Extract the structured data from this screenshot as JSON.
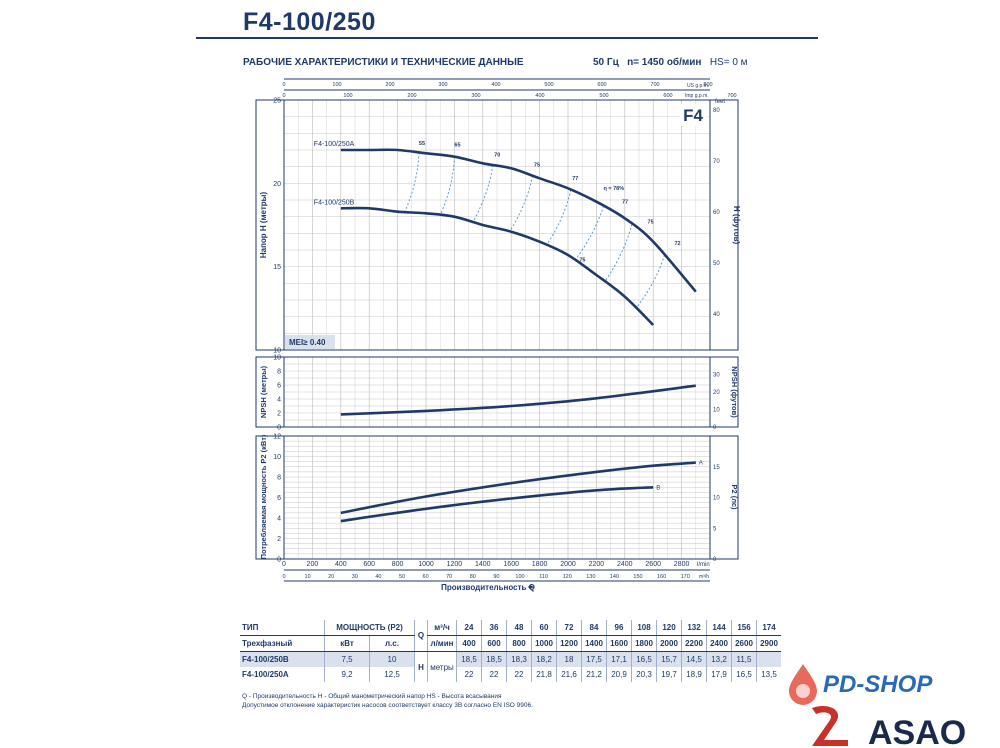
{
  "header": {
    "title": "F4-100/250",
    "subtitle": "РАБОЧИЕ ХАРАКТЕРИСТИКИ И ТЕХНИЧЕСКИЕ ДАННЫЕ",
    "freq": "50 Гц",
    "speed": "n= 1450 об/мин",
    "hs": "HS= 0 м"
  },
  "colors": {
    "curve": "#1f3a68",
    "eff": "#4a90c8",
    "grid": "#b9b9b9"
  },
  "chart_data": [
    {
      "type": "line",
      "badge": "F4",
      "mei": "MEI≥ 0.40",
      "ylabel": "Напор H (метры)",
      "y2label": "H (футов)",
      "y2unit": "feet",
      "ylim": [
        10,
        25
      ],
      "yticks": [
        "10",
        "15",
        "20",
        "25"
      ],
      "y2ticks": [
        "40",
        "50",
        "60",
        "70",
        "80"
      ],
      "top_axes": [
        {
          "unit": "US g.p.m.",
          "ticks": [
            "0",
            "100",
            "200",
            "300",
            "400",
            "500",
            "600",
            "700",
            "800"
          ]
        },
        {
          "unit": "Imp g.p.m.",
          "ticks": [
            "0",
            "100",
            "200",
            "300",
            "400",
            "500",
            "600",
            "700"
          ]
        }
      ],
      "series": [
        {
          "name": "F4-100/250A",
          "x": [
            400,
            600,
            800,
            1000,
            1200,
            1400,
            1600,
            1800,
            2000,
            2200,
            2400,
            2600,
            2900
          ],
          "y": [
            22,
            22,
            22,
            21.8,
            21.6,
            21.2,
            20.9,
            20.3,
            19.7,
            18.9,
            17.9,
            16.5,
            13.5
          ]
        },
        {
          "name": "F4-100/250B",
          "x": [
            400,
            600,
            800,
            1000,
            1200,
            1400,
            1600,
            1800,
            2000,
            2200,
            2400,
            2600
          ],
          "y": [
            18.5,
            18.5,
            18.3,
            18.2,
            18,
            17.5,
            17.1,
            16.5,
            15.7,
            14.5,
            13.2,
            11.5
          ]
        }
      ],
      "efficiency_labels": [
        "55",
        "65",
        "70",
        "75",
        "77",
        "η = 78%",
        "77",
        "75",
        "72",
        "75"
      ]
    },
    {
      "type": "line",
      "ylabel": "NPSH (метры)",
      "y2label": "NPSH (футов)",
      "ylim": [
        0,
        10
      ],
      "yticks": [
        "0",
        "2",
        "4",
        "6",
        "8",
        "10"
      ],
      "y2ticks": [
        "0",
        "10",
        "20",
        "30"
      ],
      "series": [
        {
          "x": [
            400,
            1000,
            1600,
            2200,
            2900
          ],
          "y": [
            1.8,
            2.3,
            3.0,
            4.1,
            5.9
          ]
        }
      ]
    },
    {
      "type": "line",
      "ylabel": "Потребляемая мощность P2 (кВт)",
      "y2label": "P2 (лс)",
      "ylim": [
        0,
        12
      ],
      "yticks": [
        "0",
        "2",
        "4",
        "6",
        "8",
        "10",
        "12"
      ],
      "y2ticks": [
        "0",
        "5",
        "10",
        "15"
      ],
      "xlabel": "Производительность Q",
      "xunit": "l/min",
      "x2unit": "m³/h",
      "xlim": [
        0,
        3000
      ],
      "xticks": [
        "0",
        "200",
        "400",
        "600",
        "800",
        "1000",
        "1200",
        "1400",
        "1600",
        "1800",
        "2000",
        "2200",
        "2400",
        "2600",
        "2800"
      ],
      "x2ticks": [
        "0",
        "10",
        "20",
        "30",
        "40",
        "50",
        "60",
        "70",
        "80",
        "90",
        "100",
        "110",
        "120",
        "130",
        "140",
        "150",
        "160",
        "170"
      ],
      "series": [
        {
          "name": "A",
          "x": [
            400,
            1000,
            1600,
            2200,
            2600,
            2900
          ],
          "y": [
            4.5,
            6.1,
            7.4,
            8.5,
            9.1,
            9.4
          ]
        },
        {
          "name": "B",
          "x": [
            400,
            1000,
            1600,
            2200,
            2600
          ],
          "y": [
            3.7,
            4.9,
            5.9,
            6.7,
            7.0
          ]
        }
      ]
    }
  ],
  "table": {
    "col_type": "ТИП",
    "col_power": "МОЩНОСТЬ (P2)",
    "col_q": "Q",
    "unit_m3h": "м³/ч",
    "unit_lmin": "л/мин",
    "phase": "Трехфазный",
    "kw": "кВт",
    "hp": "л.с.",
    "h_label": "H",
    "h_unit": "метры",
    "m3h": [
      "24",
      "36",
      "48",
      "60",
      "72",
      "84",
      "96",
      "108",
      "120",
      "132",
      "144",
      "156",
      "174"
    ],
    "lmin": [
      "400",
      "600",
      "800",
      "1000",
      "1200",
      "1400",
      "1600",
      "1800",
      "2000",
      "2200",
      "2400",
      "2600",
      "2900"
    ],
    "rows": [
      {
        "type": "F4-100/250B",
        "kw": "7,5",
        "hp": "10",
        "h": [
          "18,5",
          "18,5",
          "18,3",
          "18,2",
          "18",
          "17,5",
          "17,1",
          "16,5",
          "15,7",
          "14,5",
          "13,2",
          "11,5",
          ""
        ]
      },
      {
        "type": "F4-100/250A",
        "kw": "9,2",
        "hp": "12,5",
        "h": [
          "22",
          "22",
          "22",
          "21,8",
          "21,6",
          "21,2",
          "20,9",
          "20,3",
          "19,7",
          "18,9",
          "17,9",
          "16,5",
          "13,5"
        ]
      }
    ]
  },
  "notes": {
    "line1": "Q - Производительность   H - Общий манометрический напор   HS - Высота всасывания",
    "line2": "Допустимое отклонение характеристик насосов соответствует классу 3B согласно EN ISO 9906."
  },
  "logos": {
    "pdshop": "PD-SHOP",
    "asao": "ASAO"
  }
}
